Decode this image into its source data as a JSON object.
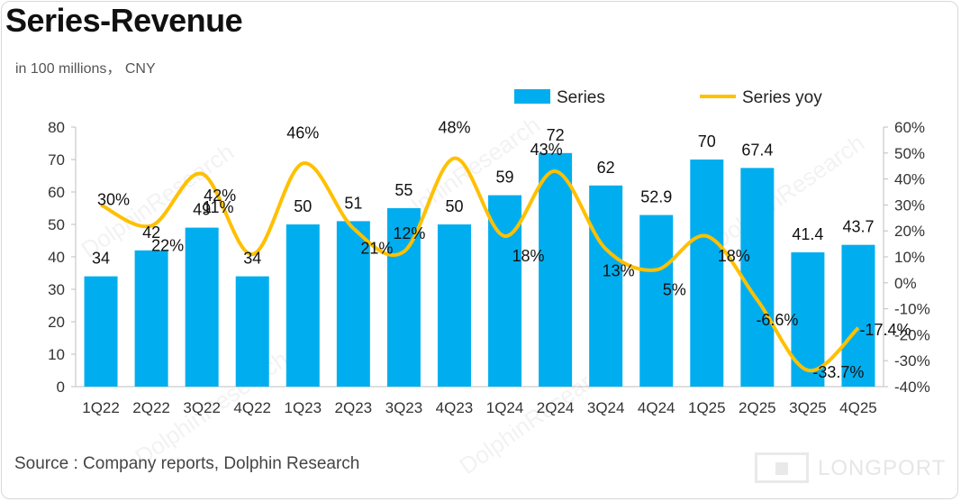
{
  "title": "Series-Revenue",
  "unit_note": "in 100 millions， CNY",
  "source": "Source : Company reports, Dolphin Research",
  "watermark": "DolphinResearch",
  "logo_text": "LONGPORT",
  "colors": {
    "bar": "#00aeef",
    "line": "#ffc000",
    "axis": "#bfbfbf"
  },
  "chart_data": {
    "type": "bar",
    "categories": [
      "1Q22",
      "2Q22",
      "3Q22",
      "4Q22",
      "1Q23",
      "2Q23",
      "3Q23",
      "4Q23",
      "1Q24",
      "2Q24",
      "3Q24",
      "4Q24",
      "1Q25",
      "2Q25",
      "3Q25",
      "4Q25"
    ],
    "series": [
      {
        "name": "Series",
        "type": "bar",
        "axis": "left",
        "values": [
          34,
          42,
          49,
          34,
          50,
          51,
          55,
          50,
          59,
          72,
          62,
          52.9,
          70,
          67.4,
          41.4,
          43.7
        ],
        "labels": [
          "34",
          "42",
          "49",
          "34",
          "50",
          "51",
          "55",
          "50",
          "59",
          "72",
          "62",
          "52.9",
          "70",
          "67.4",
          "41.4",
          "43.7"
        ]
      },
      {
        "name": "Series yoy",
        "type": "line",
        "axis": "right",
        "values": [
          30,
          22,
          42,
          11,
          46,
          21,
          12,
          48,
          18,
          43,
          13,
          5,
          18,
          -6.6,
          -33.7,
          -17.4
        ],
        "labels": [
          "30%",
          "22%",
          "42%",
          "11%",
          "46%",
          "21%",
          "12%",
          "48%",
          "18%",
          "43%",
          "13%",
          "5%",
          "18%",
          "-6.6%",
          "-33.7%",
          "-17.4%"
        ]
      }
    ],
    "y_left": {
      "min": 0,
      "max": 80,
      "ticks": [
        "0",
        "10",
        "20",
        "30",
        "40",
        "50",
        "60",
        "70",
        "80"
      ]
    },
    "y_right": {
      "min": -40,
      "max": 60,
      "ticks": [
        "-40%",
        "-30%",
        "-20%",
        "-10%",
        "0%",
        "10%",
        "20%",
        "30%",
        "40%",
        "50%",
        "60%"
      ]
    },
    "grid": false,
    "legend": "top-right"
  }
}
